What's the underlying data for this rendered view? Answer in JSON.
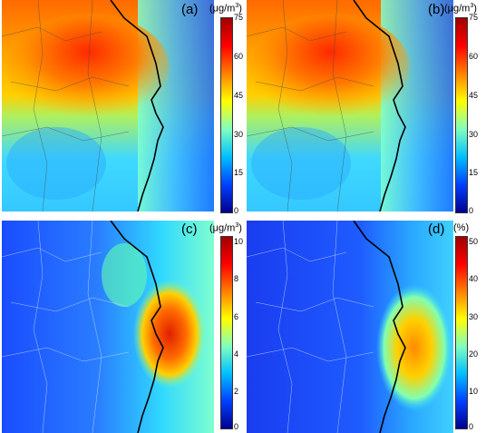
{
  "chart_data": [
    {
      "type": "heatmap",
      "panel_label": "(a)",
      "unit": "(μg/m³)",
      "colorbar_ticks": [
        "75",
        "60",
        "45",
        "30",
        "15",
        "0"
      ],
      "range": [
        0,
        75
      ],
      "field": "high_north_low_south"
    },
    {
      "type": "heatmap",
      "panel_label": "(b)",
      "unit": "(μg/m³)",
      "colorbar_ticks": [
        "75",
        "60",
        "45",
        "30",
        "15",
        "0"
      ],
      "range": [
        0,
        75
      ],
      "field": "high_north_low_south"
    },
    {
      "type": "heatmap",
      "panel_label": "(c)",
      "unit": "(μg/m³)",
      "colorbar_ticks": [
        "10",
        "8",
        "6",
        "4",
        "2",
        "0"
      ],
      "range": [
        0,
        10
      ],
      "field": "coastal_hotspot"
    },
    {
      "type": "heatmap",
      "panel_label": "(d)",
      "unit": "(%)",
      "colorbar_ticks": [
        "50",
        "40",
        "30",
        "20",
        "10",
        "0"
      ],
      "range": [
        0,
        50
      ],
      "field": "offshore_plume"
    }
  ],
  "colormap": [
    "#00008f",
    "#0040ff",
    "#00bfff",
    "#80ffbf",
    "#ffff00",
    "#ff8000",
    "#ff0000",
    "#a00000"
  ]
}
